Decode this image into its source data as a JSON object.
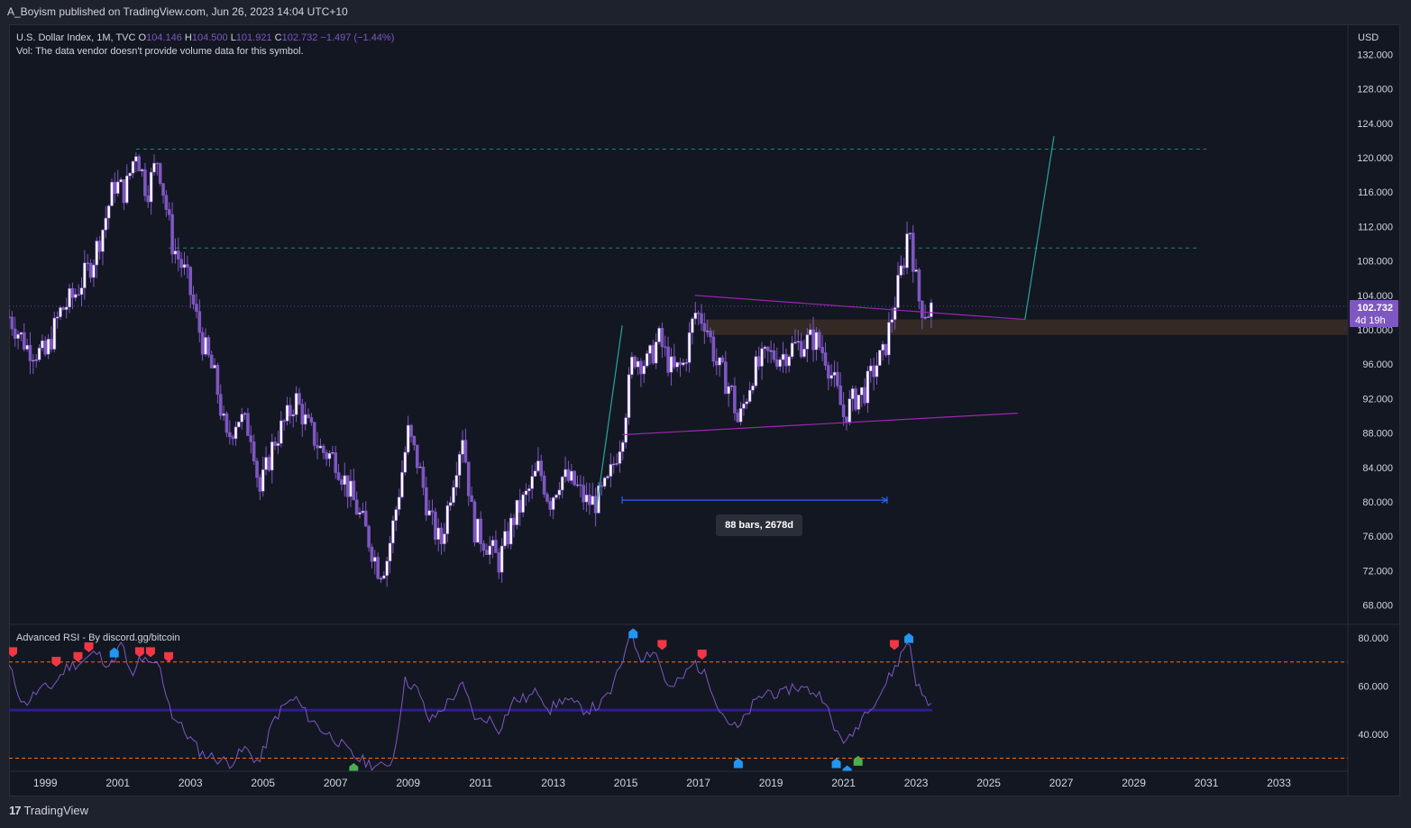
{
  "header": {
    "publisher": "A_Boyism published on TradingView.com, Jun 26, 2023 14:04 UTC+10"
  },
  "legend": {
    "symbol": "U.S. Dollar Index, 1M, TVC",
    "o_label": "O",
    "o_value": "104.146",
    "h_label": "H",
    "h_value": "104.500",
    "l_label": "L",
    "l_value": "101.921",
    "c_label": "C",
    "c_value": "102.732",
    "change": "−1.497 (−1.44%)",
    "vol_note": "Vol: The data vendor doesn't provide volume data for this symbol."
  },
  "price_axis": {
    "currency": "USD",
    "ticks": [
      "132.000",
      "128.000",
      "124.000",
      "120.000",
      "116.000",
      "112.000",
      "108.000",
      "104.000",
      "100.000",
      "96.000",
      "92.000",
      "88.000",
      "84.000",
      "80.000",
      "76.000",
      "72.000",
      "68.000"
    ],
    "last_price": "102.732",
    "countdown": "4d 19h"
  },
  "rsi_panel": {
    "title": "Advanced RSI - By discord.gg/bitcoin",
    "ticks": [
      "80.000",
      "60.000",
      "40.000"
    ]
  },
  "time_axis": {
    "labels": [
      "1999",
      "2001",
      "2003",
      "2005",
      "2007",
      "2009",
      "2011",
      "2013",
      "2015",
      "2017",
      "2019",
      "2021",
      "2023",
      "2025",
      "2027",
      "2029",
      "2031",
      "2033"
    ]
  },
  "measure": {
    "label": "88 bars, 2678d"
  },
  "footer": {
    "brand": "TradingView"
  },
  "colors": {
    "candle": "#7e57c2",
    "background": "#131722",
    "rsi": "#7e57c2",
    "overbought": "#26a69a",
    "hline": "#ff6d00",
    "trendline": "#9c27b0",
    "projection": "#26a69a",
    "zone": "#3b2e26",
    "measure": "#2962ff",
    "sell_marker": "#f23645",
    "buy_marker": "#2196f3",
    "green_marker": "#4caf50"
  },
  "chart_data": {
    "type": "candlestick",
    "symbol": "U.S. Dollar Index, 1M, TVC",
    "ylim": [
      66,
      134
    ],
    "x_range": [
      1998.0,
      2034.9
    ],
    "price_path": [
      [
        1998.0,
        101.5
      ],
      [
        1998.5,
        98
      ],
      [
        1999.0,
        97
      ],
      [
        1999.4,
        102
      ],
      [
        1999.8,
        104
      ],
      [
        2000.3,
        108
      ],
      [
        2000.6,
        112
      ],
      [
        2000.9,
        117
      ],
      [
        2001.2,
        116
      ],
      [
        2001.5,
        121
      ],
      [
        2001.8,
        116
      ],
      [
        2002.1,
        120
      ],
      [
        2002.5,
        110
      ],
      [
        2002.9,
        106
      ],
      [
        2003.3,
        99
      ],
      [
        2003.7,
        94
      ],
      [
        2004.0,
        87
      ],
      [
        2004.3,
        90
      ],
      [
        2004.7,
        88
      ],
      [
        2004.9,
        81
      ],
      [
        2005.3,
        87
      ],
      [
        2005.7,
        90
      ],
      [
        2005.9,
        92
      ],
      [
        2006.2,
        89
      ],
      [
        2006.6,
        86
      ],
      [
        2007.0,
        85
      ],
      [
        2007.4,
        81
      ],
      [
        2007.8,
        77
      ],
      [
        2008.2,
        72
      ],
      [
        2008.4,
        73
      ],
      [
        2008.7,
        80
      ],
      [
        2009.0,
        88
      ],
      [
        2009.3,
        84
      ],
      [
        2009.6,
        78
      ],
      [
        2009.9,
        75
      ],
      [
        2010.2,
        82
      ],
      [
        2010.5,
        88
      ],
      [
        2010.8,
        77
      ],
      [
        2011.2,
        75
      ],
      [
        2011.5,
        73
      ],
      [
        2011.9,
        78
      ],
      [
        2012.3,
        81
      ],
      [
        2012.6,
        84
      ],
      [
        2012.9,
        80
      ],
      [
        2013.2,
        83
      ],
      [
        2013.6,
        82
      ],
      [
        2013.9,
        80
      ],
      [
        2014.2,
        80
      ],
      [
        2014.5,
        82
      ],
      [
        2014.9,
        88
      ],
      [
        2015.2,
        97
      ],
      [
        2015.6,
        96
      ],
      [
        2015.9,
        99
      ],
      [
        2016.3,
        95
      ],
      [
        2016.6,
        96
      ],
      [
        2016.9,
        102
      ],
      [
        2017.2,
        101
      ],
      [
        2017.5,
        96
      ],
      [
        2017.9,
        93
      ],
      [
        2018.1,
        89
      ],
      [
        2018.5,
        95
      ],
      [
        2018.9,
        97
      ],
      [
        2019.3,
        97
      ],
      [
        2019.6,
        98
      ],
      [
        2020.2,
        99
      ],
      [
        2020.5,
        97
      ],
      [
        2020.8,
        93
      ],
      [
        2021.0,
        90
      ],
      [
        2021.3,
        92
      ],
      [
        2021.6,
        93
      ],
      [
        2021.9,
        96
      ],
      [
        2022.1,
        97
      ],
      [
        2022.4,
        103
      ],
      [
        2022.7,
        109
      ],
      [
        2022.8,
        113
      ],
      [
        2022.95,
        107
      ],
      [
        2023.1,
        103
      ],
      [
        2023.3,
        102
      ],
      [
        2023.45,
        102.732
      ]
    ],
    "rsi_path": [
      [
        1998.0,
        68
      ],
      [
        1998.4,
        52
      ],
      [
        1998.8,
        58
      ],
      [
        1999.2,
        60
      ],
      [
        1999.6,
        68
      ],
      [
        2000.0,
        70
      ],
      [
        2000.4,
        74
      ],
      [
        2000.8,
        68
      ],
      [
        2001.1,
        78
      ],
      [
        2001.4,
        62
      ],
      [
        2001.6,
        72
      ],
      [
        2001.9,
        68
      ],
      [
        2002.1,
        70
      ],
      [
        2002.5,
        48
      ],
      [
        2002.9,
        40
      ],
      [
        2003.3,
        32
      ],
      [
        2003.7,
        30
      ],
      [
        2004.1,
        28
      ],
      [
        2004.5,
        34
      ],
      [
        2004.9,
        28
      ],
      [
        2005.3,
        46
      ],
      [
        2005.6,
        52
      ],
      [
        2005.9,
        55
      ],
      [
        2006.2,
        48
      ],
      [
        2006.6,
        42
      ],
      [
        2007.0,
        38
      ],
      [
        2007.4,
        32
      ],
      [
        2007.6,
        30
      ],
      [
        2007.9,
        28
      ],
      [
        2008.3,
        26
      ],
      [
        2008.6,
        30
      ],
      [
        2008.9,
        62
      ],
      [
        2009.2,
        60
      ],
      [
        2009.6,
        45
      ],
      [
        2009.9,
        50
      ],
      [
        2010.2,
        55
      ],
      [
        2010.5,
        60
      ],
      [
        2010.9,
        45
      ],
      [
        2011.2,
        47
      ],
      [
        2011.5,
        42
      ],
      [
        2011.9,
        54
      ],
      [
        2012.3,
        55
      ],
      [
        2012.6,
        58
      ],
      [
        2012.9,
        50
      ],
      [
        2013.3,
        55
      ],
      [
        2013.6,
        52
      ],
      [
        2013.9,
        50
      ],
      [
        2014.3,
        52
      ],
      [
        2014.6,
        58
      ],
      [
        2014.9,
        70
      ],
      [
        2015.1,
        83
      ],
      [
        2015.4,
        72
      ],
      [
        2015.8,
        75
      ],
      [
        2016.2,
        58
      ],
      [
        2016.6,
        64
      ],
      [
        2016.9,
        70
      ],
      [
        2017.3,
        62
      ],
      [
        2017.6,
        50
      ],
      [
        2017.9,
        44
      ],
      [
        2018.1,
        42
      ],
      [
        2018.5,
        52
      ],
      [
        2018.9,
        58
      ],
      [
        2019.3,
        56
      ],
      [
        2019.6,
        60
      ],
      [
        2020.1,
        58
      ],
      [
        2020.5,
        55
      ],
      [
        2020.7,
        42
      ],
      [
        2020.9,
        40
      ],
      [
        2021.1,
        36
      ],
      [
        2021.4,
        44
      ],
      [
        2021.7,
        52
      ],
      [
        2021.9,
        54
      ],
      [
        2022.2,
        62
      ],
      [
        2022.5,
        70
      ],
      [
        2022.8,
        80
      ],
      [
        2023.0,
        62
      ],
      [
        2023.2,
        55
      ],
      [
        2023.45,
        52
      ]
    ],
    "rsi_levels": {
      "overbought": 70,
      "mid": 50,
      "oversold": 30
    },
    "rsi_ylim": [
      25,
      86
    ],
    "horizontal_levels": [
      {
        "price": 121,
        "from": 2001.5,
        "to": 2031.0
      },
      {
        "price": 109.5,
        "from": 2002.4,
        "to": 2030.8
      }
    ],
    "trendlines": [
      {
        "from": [
          2016.9,
          104.0
        ],
        "to": [
          2026.0,
          101.2
        ]
      },
      {
        "from": [
          2014.9,
          87.8
        ],
        "to": [
          2025.8,
          90.3
        ]
      }
    ],
    "projections": [
      {
        "from": [
          2014.2,
          79.5
        ],
        "to": [
          2014.9,
          100.5
        ]
      },
      {
        "from": [
          2026.0,
          101.2
        ],
        "to": [
          2026.8,
          122.5
        ]
      }
    ],
    "zone": {
      "from": 2017.2,
      "to": 2034.9,
      "top": 101.2,
      "bottom": 99.4
    },
    "measure_range": {
      "from": 2014.9,
      "to": 2022.2,
      "price": 80.2
    },
    "rsi_markers": [
      {
        "x": 1998.1,
        "y": 72,
        "kind": "sell"
      },
      {
        "x": 1999.3,
        "y": 68,
        "kind": "sell"
      },
      {
        "x": 1999.9,
        "y": 70,
        "kind": "sell"
      },
      {
        "x": 2000.2,
        "y": 74,
        "kind": "sell"
      },
      {
        "x": 2000.9,
        "y": 76,
        "kind": "buy"
      },
      {
        "x": 2001.6,
        "y": 72,
        "kind": "sell"
      },
      {
        "x": 2001.9,
        "y": 72,
        "kind": "sell"
      },
      {
        "x": 2002.4,
        "y": 70,
        "kind": "sell"
      },
      {
        "x": 2007.5,
        "y": 28,
        "kind": "green"
      },
      {
        "x": 2015.2,
        "y": 84,
        "kind": "buy"
      },
      {
        "x": 2016.0,
        "y": 75,
        "kind": "sell"
      },
      {
        "x": 2017.1,
        "y": 71,
        "kind": "sell"
      },
      {
        "x": 2018.1,
        "y": 30,
        "kind": "buy"
      },
      {
        "x": 2020.8,
        "y": 30,
        "kind": "buy"
      },
      {
        "x": 2021.1,
        "y": 27,
        "kind": "buy"
      },
      {
        "x": 2021.4,
        "y": 31,
        "kind": "green"
      },
      {
        "x": 2022.4,
        "y": 75,
        "kind": "sell"
      },
      {
        "x": 2022.8,
        "y": 82,
        "kind": "buy"
      }
    ]
  }
}
